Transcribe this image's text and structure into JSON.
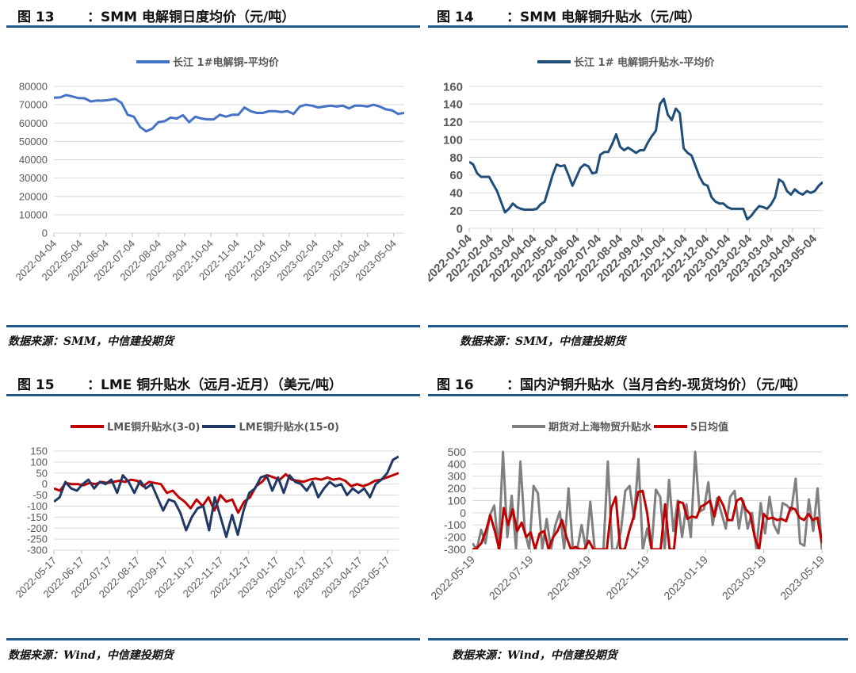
{
  "figures": [
    {
      "fig_label": "图 13",
      "title": "：SMM 电解铜日度均价（元/吨）",
      "source": "数据来源：SMM，中信建投期货"
    },
    {
      "fig_label": "图 14",
      "title": "：SMM 电解铜升贴水（元/吨）",
      "source": "数据来源：SMM，中信建投期货"
    },
    {
      "fig_label": "图 15",
      "title": "：LME 铜升贴水（远月-近月）（美元/吨）",
      "source": "数据来源：Wind，中信建投期货"
    },
    {
      "fig_label": "图 16",
      "title": "：国内沪铜升贴水（当月合约-现货均价）（元/吨）",
      "source": "数据来源：Wind，中信建投期货"
    }
  ],
  "chart_data": [
    {
      "type": "line",
      "title": "SMM 电解铜日度均价（元/吨）",
      "xlabel": "",
      "ylabel": "",
      "ylim": [
        0,
        80000
      ],
      "yticks": [
        "80000",
        "70000",
        "60000",
        "50000",
        "40000",
        "30000",
        "20000",
        "10000",
        "0"
      ],
      "categories": [
        "2022-04-04",
        "2022-05-04",
        "2022-06-04",
        "2022-07-04",
        "2022-08-04",
        "2022-09-04",
        "2022-10-04",
        "2022-11-04",
        "2022-12-04",
        "2023-01-04",
        "2023-02-04",
        "2023-03-04",
        "2023-04-04",
        "2023-05-04"
      ],
      "grid": true,
      "legend_position": "top",
      "series": [
        {
          "name": "长江 1#电解铜-平均价",
          "color": "#4472c4",
          "values": [
            73800,
            74000,
            75300,
            74500,
            73600,
            73500,
            71800,
            72300,
            72200,
            72600,
            73200,
            71000,
            64500,
            63500,
            58000,
            55500,
            57000,
            60500,
            61000,
            63000,
            62500,
            64300,
            60500,
            63500,
            62500,
            62000,
            62000,
            64500,
            63500,
            64500,
            64500,
            68500,
            66500,
            65500,
            65500,
            66500,
            66500,
            66000,
            66500,
            65000,
            69000,
            70000,
            69500,
            68500,
            69000,
            69500,
            69000,
            69500,
            68000,
            69500,
            69500,
            69000,
            70000,
            69000,
            67500,
            67000,
            65000,
            65500
          ]
        }
      ]
    },
    {
      "type": "line",
      "title": "SMM 电解铜升贴水（元/吨）",
      "ylim": [
        0,
        160
      ],
      "yticks": [
        "160",
        "140",
        "120",
        "100",
        "80",
        "60",
        "40",
        "20",
        "0"
      ],
      "categories": [
        "2022-01-04",
        "2022-02-04",
        "2022-03-04",
        "2022-04-04",
        "2022-05-04",
        "2022-06-04",
        "2022-07-04",
        "2022-08-04",
        "2022-09-04",
        "2022-10-04",
        "2022-11-04",
        "2022-12-04",
        "2023-01-04",
        "2023-02-04",
        "2023-03-04",
        "2023-04-04",
        "2023-05-04"
      ],
      "grid": true,
      "legend_position": "top",
      "series": [
        {
          "name": "长江 1# 电解铜升贴水-平均价",
          "color": "#1f4e79",
          "values": [
            75,
            72,
            62,
            58,
            58,
            58,
            50,
            42,
            30,
            18,
            22,
            28,
            24,
            22,
            21,
            21,
            21,
            22,
            27,
            30,
            45,
            60,
            72,
            70,
            71,
            60,
            48,
            58,
            68,
            72,
            70,
            62,
            63,
            83,
            86,
            86,
            95,
            106,
            92,
            88,
            91,
            88,
            85,
            88,
            88,
            97,
            104,
            110,
            140,
            146,
            128,
            122,
            135,
            130,
            90,
            85,
            82,
            70,
            58,
            50,
            48,
            35,
            30,
            28,
            28,
            24,
            22,
            22,
            22,
            22,
            10,
            14,
            20,
            25,
            24,
            22,
            27,
            35,
            55,
            52,
            42,
            38,
            44,
            40,
            38,
            42,
            40,
            42,
            48,
            52
          ]
        }
      ]
    },
    {
      "type": "line",
      "title": "LME 铜升贴水（远月-近月）（美元/吨）",
      "ylim": [
        -300,
        150
      ],
      "yticks": [
        "150",
        "100",
        "50",
        "0",
        "-50",
        "-100",
        "-150",
        "-200",
        "-250",
        "-300"
      ],
      "categories": [
        "2022-05-17",
        "2022-06-17",
        "2022-07-17",
        "2022-08-17",
        "2022-09-17",
        "2022-10-17",
        "2022-11-17",
        "2022-12-17",
        "2023-01-17",
        "2023-02-17",
        "2023-03-17",
        "2023-04-17",
        "2023-05-17"
      ],
      "grid": true,
      "legend_position": "top",
      "series": [
        {
          "name": "LME铜升贴水(3-0)",
          "color": "#c00000",
          "values": [
            -20,
            -30,
            5,
            0,
            0,
            -5,
            5,
            0,
            10,
            5,
            10,
            15,
            10,
            20,
            15,
            -10,
            10,
            5,
            0,
            -40,
            -30,
            -60,
            -80,
            -110,
            -70,
            -100,
            -60,
            -120,
            -50,
            -80,
            -70,
            -130,
            -80,
            -60,
            -10,
            10,
            40,
            30,
            20,
            45,
            20,
            15,
            10,
            20,
            25,
            20,
            30,
            20,
            25,
            15,
            -10,
            0,
            -10,
            0,
            15,
            20,
            30,
            40,
            50
          ]
        },
        {
          "name": "LME铜升贴水(15-0)",
          "color": "#203864",
          "values": [
            -80,
            -60,
            10,
            -20,
            -30,
            0,
            20,
            -20,
            10,
            0,
            20,
            -40,
            40,
            10,
            -40,
            15,
            -20,
            0,
            -60,
            -120,
            -70,
            -80,
            -130,
            -210,
            -150,
            -110,
            -100,
            -210,
            -60,
            -150,
            -240,
            -140,
            -230,
            -120,
            -40,
            -20,
            30,
            40,
            -30,
            30,
            -40,
            40,
            10,
            0,
            -30,
            10,
            -60,
            -20,
            10,
            -10,
            0,
            -50,
            -20,
            -40,
            -20,
            -60,
            0,
            20,
            50,
            110,
            125
          ]
        }
      ]
    },
    {
      "type": "line",
      "title": "国内沪铜升贴水（当月合约-现货均价）（元/吨）",
      "ylim": [
        -300,
        500
      ],
      "yticks": [
        "500",
        "400",
        "300",
        "200",
        "100",
        "0",
        "-100",
        "-200",
        "-300"
      ],
      "categories": [
        "2022-05-19",
        "2022-07-19",
        "2022-09-19",
        "2022-11-19",
        "2023-01-19",
        "2023-03-19",
        "2023-05-19"
      ],
      "grid": true,
      "legend_position": "top",
      "series": [
        {
          "name": "期货对上海物贸升贴水",
          "color": "#808080",
          "values": [
            -250,
            -300,
            -140,
            -250,
            -20,
            60,
            -300,
            500,
            -200,
            140,
            -300,
            420,
            -150,
            -300,
            220,
            160,
            -300,
            -50,
            -300,
            -100,
            10,
            -300,
            200,
            -300,
            -300,
            -100,
            -300,
            90,
            -300,
            -300,
            -300,
            420,
            -300,
            -300,
            -150,
            180,
            220,
            -50,
            440,
            -300,
            -130,
            -300,
            190,
            130,
            -300,
            270,
            -150,
            100,
            -200,
            70,
            -200,
            500,
            10,
            30,
            250,
            -100,
            120,
            0,
            -130,
            130,
            180,
            -130,
            100,
            -130,
            0,
            -300,
            80,
            -170,
            130,
            -100,
            -170,
            80,
            60,
            20,
            280,
            -250,
            -270,
            110,
            -150,
            200,
            -300
          ]
        },
        {
          "name": "5日均值",
          "color": "#c00000",
          "values": [
            -300,
            -290,
            -250,
            -150,
            -20,
            -150,
            -300,
            40,
            -100,
            30,
            -150,
            -80,
            -200,
            -160,
            -300,
            -170,
            -150,
            -300,
            -200,
            -150,
            -60,
            -200,
            -300,
            -280,
            -300,
            -300,
            -230,
            -300,
            -300,
            -300,
            -300,
            40,
            130,
            -300,
            -300,
            -150,
            -30,
            170,
            180,
            0,
            -300,
            -300,
            -300,
            70,
            -300,
            -300,
            90,
            80,
            -50,
            -30,
            -40,
            50,
            70,
            100,
            -30,
            130,
            60,
            -60,
            -60,
            100,
            120,
            30,
            -10,
            -200,
            -300,
            -10,
            -50,
            -40,
            -60,
            -50,
            -70,
            40,
            30,
            -40,
            -60,
            -10,
            -60,
            -40,
            -250
          ]
        }
      ]
    }
  ]
}
